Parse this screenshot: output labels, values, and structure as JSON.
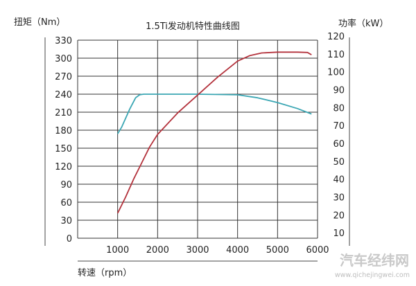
{
  "chart_data": {
    "type": "line",
    "title": "1.5Ti发动机特性曲线图",
    "xlabel": "转速（rpm）",
    "ylabel_left": "扭矩（Nm）",
    "ylabel_right": "功率（kW）",
    "xlim": [
      0,
      6000
    ],
    "ylim_left": [
      0,
      330
    ],
    "ylim_right": [
      0,
      120
    ],
    "x_ticks": [
      1000,
      2000,
      3000,
      4000,
      5000,
      6000
    ],
    "y_left_ticks": [
      0,
      30,
      60,
      90,
      120,
      150,
      180,
      210,
      240,
      270,
      300,
      330
    ],
    "y_right_ticks": [
      10,
      20,
      30,
      40,
      50,
      60,
      70,
      80,
      90,
      100,
      110,
      120
    ],
    "grid": true,
    "series": [
      {
        "axis": "left",
        "color": "#3aa6b3",
        "x": [
          1000,
          1100,
          1300,
          1450,
          1550,
          1650,
          2000,
          3000,
          4000,
          4500,
          5000,
          5500,
          5850
        ],
        "y": [
          174,
          185,
          215,
          234,
          239,
          240,
          240,
          240,
          239,
          234,
          226,
          216,
          207
        ]
      },
      {
        "axis": "right",
        "color": "#b3313b",
        "x": [
          1000,
          1200,
          1400,
          1600,
          1800,
          2000,
          2500,
          3000,
          3500,
          4000,
          4300,
          4600,
          5000,
          5500,
          5750,
          5850
        ],
        "y": [
          21,
          30,
          40,
          49,
          58,
          65,
          77,
          87,
          97,
          106,
          109,
          110.5,
          111,
          111,
          110.8,
          109.5
        ]
      }
    ]
  },
  "watermark": {
    "name": "汽车经纬网",
    "url": "www.qichejingwei.com"
  }
}
